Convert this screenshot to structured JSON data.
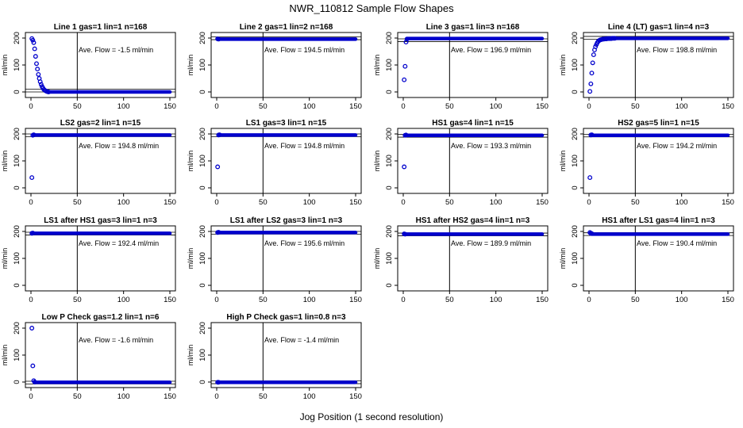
{
  "figure": {
    "title": "NWR_110812  Sample Flow Shapes",
    "xlabel": "Jog Position (1 second resolution)"
  },
  "colors": {
    "points": "#0000cc",
    "frame": "#000000"
  },
  "chart_data": [
    {
      "type": "scatter",
      "title": "Line 1 gas=1 lin=1 n=168",
      "annotation": "Ave. Flow =  -1.5  ml/min",
      "ylabel": "ml/min",
      "xlim": [
        0,
        150
      ],
      "ylim": [
        0,
        200
      ],
      "xticks": [
        0,
        50,
        100,
        150
      ],
      "yticks": [
        0,
        100,
        200
      ],
      "vline": 50,
      "hlines": [
        0,
        10
      ],
      "steady": 0,
      "steady_to": 150,
      "points": [
        [
          1,
          198
        ],
        [
          2,
          192
        ],
        [
          3,
          183
        ],
        [
          4,
          160
        ],
        [
          5,
          132
        ],
        [
          6,
          105
        ],
        [
          7,
          85
        ],
        [
          8,
          65
        ],
        [
          9,
          50
        ],
        [
          10,
          38
        ],
        [
          11,
          28
        ],
        [
          12,
          20
        ],
        [
          13,
          14
        ],
        [
          14,
          9
        ],
        [
          15,
          6
        ],
        [
          16,
          4
        ],
        [
          17,
          2
        ],
        [
          18,
          1
        ],
        [
          19,
          0
        ]
      ]
    },
    {
      "type": "scatter",
      "title": "Line 2 gas=1 lin=2 n=168",
      "annotation": "Ave. Flow =  194.5  ml/min",
      "ylabel": "ml/min",
      "xlim": [
        0,
        150
      ],
      "ylim": [
        0,
        200
      ],
      "xticks": [
        0,
        50,
        100,
        150
      ],
      "yticks": [
        0,
        100,
        200
      ],
      "vline": 50,
      "hlines": [
        194,
        204
      ],
      "steady": 196,
      "steady_to": 150,
      "points": [
        [
          1,
          197
        ],
        [
          2,
          196
        ]
      ]
    },
    {
      "type": "scatter",
      "title": "Line 3 gas=1 lin=3 n=168",
      "annotation": "Ave. Flow =  196.9  ml/min",
      "ylabel": "ml/min",
      "xlim": [
        0,
        150
      ],
      "ylim": [
        0,
        200
      ],
      "xticks": [
        0,
        50,
        100,
        150
      ],
      "yticks": [
        0,
        100,
        200
      ],
      "vline": 50,
      "hlines": [
        187,
        197
      ],
      "steady": 198,
      "steady_to": 150,
      "points": [
        [
          1,
          45
        ],
        [
          2,
          95
        ],
        [
          3,
          185
        ],
        [
          4,
          196
        ]
      ]
    },
    {
      "type": "scatter",
      "title": "Line 4 (LT) gas=1 lin=4 n=3",
      "annotation": "Ave. Flow =  198.8  ml/min",
      "ylabel": "ml/min",
      "xlim": [
        0,
        150
      ],
      "ylim": [
        0,
        200
      ],
      "xticks": [
        0,
        50,
        100,
        150
      ],
      "yticks": [
        0,
        100,
        200
      ],
      "vline": 50,
      "hlines": [
        196,
        206
      ],
      "steady": 199,
      "steady_to": 150,
      "points": [
        [
          1,
          2
        ],
        [
          2,
          30
        ],
        [
          3,
          70
        ],
        [
          4,
          108
        ],
        [
          5,
          138
        ],
        [
          6,
          156
        ],
        [
          7,
          168
        ],
        [
          8,
          176
        ],
        [
          9,
          183
        ],
        [
          10,
          188
        ],
        [
          11,
          191
        ],
        [
          12,
          193
        ],
        [
          13,
          194
        ],
        [
          14,
          195
        ],
        [
          15,
          196
        ],
        [
          16,
          196
        ],
        [
          17,
          197
        ],
        [
          18,
          197
        ],
        [
          19,
          197
        ],
        [
          20,
          198
        ],
        [
          21,
          198
        ],
        [
          22,
          198
        ],
        [
          23,
          198
        ],
        [
          24,
          198
        ],
        [
          25,
          199
        ],
        [
          26,
          199
        ],
        [
          27,
          199
        ],
        [
          28,
          199
        ]
      ]
    },
    {
      "type": "scatter",
      "title": "LS2 gas=2 lin=1 n=15",
      "annotation": "Ave. Flow =  194.8  ml/min",
      "ylabel": "ml/min",
      "xlim": [
        0,
        150
      ],
      "ylim": [
        0,
        200
      ],
      "xticks": [
        0,
        50,
        100,
        150
      ],
      "yticks": [
        0,
        100,
        200
      ],
      "vline": 50,
      "hlines": [
        190,
        200
      ],
      "steady": 196,
      "steady_to": 150,
      "points": [
        [
          1,
          38
        ],
        [
          2,
          195
        ],
        [
          3,
          197
        ]
      ]
    },
    {
      "type": "scatter",
      "title": "LS1 gas=3 lin=1 n=15",
      "annotation": "Ave. Flow =  194.8  ml/min",
      "ylabel": "ml/min",
      "xlim": [
        0,
        150
      ],
      "ylim": [
        0,
        200
      ],
      "xticks": [
        0,
        50,
        100,
        150
      ],
      "yticks": [
        0,
        100,
        200
      ],
      "vline": 50,
      "hlines": [
        190,
        200
      ],
      "steady": 196,
      "steady_to": 150,
      "points": [
        [
          1,
          78
        ],
        [
          2,
          196
        ],
        [
          3,
          197
        ]
      ]
    },
    {
      "type": "scatter",
      "title": "HS1 gas=4 lin=1 n=15",
      "annotation": "Ave. Flow =  193.3  ml/min",
      "ylabel": "ml/min",
      "xlim": [
        0,
        150
      ],
      "ylim": [
        0,
        200
      ],
      "xticks": [
        0,
        50,
        100,
        150
      ],
      "yticks": [
        0,
        100,
        200
      ],
      "vline": 50,
      "hlines": [
        188,
        198
      ],
      "steady": 195,
      "steady_to": 150,
      "points": [
        [
          1,
          78
        ],
        [
          2,
          195
        ],
        [
          3,
          196
        ]
      ]
    },
    {
      "type": "scatter",
      "title": "HS2 gas=5 lin=1 n=15",
      "annotation": "Ave. Flow =  194.2  ml/min",
      "ylabel": "ml/min",
      "xlim": [
        0,
        150
      ],
      "ylim": [
        0,
        200
      ],
      "xticks": [
        0,
        50,
        100,
        150
      ],
      "yticks": [
        0,
        100,
        200
      ],
      "vline": 50,
      "hlines": [
        189,
        199
      ],
      "steady": 195,
      "steady_to": 150,
      "points": [
        [
          1,
          38
        ],
        [
          2,
          196
        ],
        [
          3,
          197
        ]
      ]
    },
    {
      "type": "scatter",
      "title": "LS1 after HS1 gas=3 lin=1 n=3",
      "annotation": "Ave. Flow =  192.4  ml/min",
      "ylabel": "ml/min",
      "xlim": [
        0,
        150
      ],
      "ylim": [
        0,
        200
      ],
      "xticks": [
        0,
        50,
        100,
        150
      ],
      "yticks": [
        0,
        100,
        200
      ],
      "vline": 50,
      "hlines": [
        187,
        197
      ],
      "steady": 193,
      "steady_to": 150,
      "points": [
        [
          1,
          193
        ],
        [
          2,
          194
        ]
      ]
    },
    {
      "type": "scatter",
      "title": "LS1 after LS2 gas=3 lin=1 n=3",
      "annotation": "Ave. Flow =  195.6  ml/min",
      "ylabel": "ml/min",
      "xlim": [
        0,
        150
      ],
      "ylim": [
        0,
        200
      ],
      "xticks": [
        0,
        50,
        100,
        150
      ],
      "yticks": [
        0,
        100,
        200
      ],
      "vline": 50,
      "hlines": [
        190,
        200
      ],
      "steady": 196,
      "steady_to": 150,
      "points": [
        [
          1,
          196
        ],
        [
          2,
          197
        ]
      ]
    },
    {
      "type": "scatter",
      "title": "HS1 after HS2 gas=4 lin=1 n=3",
      "annotation": "Ave. Flow =  189.9  ml/min",
      "ylabel": "ml/min",
      "xlim": [
        0,
        150
      ],
      "ylim": [
        0,
        200
      ],
      "xticks": [
        0,
        50,
        100,
        150
      ],
      "yticks": [
        0,
        100,
        200
      ],
      "vline": 50,
      "hlines": [
        184,
        194
      ],
      "steady": 190,
      "steady_to": 150,
      "points": [
        [
          1,
          191
        ],
        [
          2,
          190
        ]
      ]
    },
    {
      "type": "scatter",
      "title": "HS1 after LS1 gas=4 lin=1 n=3",
      "annotation": "Ave. Flow =  190.4  ml/min",
      "ylabel": "ml/min",
      "xlim": [
        0,
        150
      ],
      "ylim": [
        0,
        200
      ],
      "xticks": [
        0,
        50,
        100,
        150
      ],
      "yticks": [
        0,
        100,
        200
      ],
      "vline": 50,
      "hlines": [
        185,
        195
      ],
      "steady": 190,
      "steady_to": 150,
      "points": [
        [
          1,
          196
        ],
        [
          2,
          193
        ],
        [
          3,
          192
        ]
      ]
    },
    {
      "type": "scatter",
      "title": "Low P Check gas=1.2 lin=1 n=6",
      "annotation": "Ave. Flow =  -1.6  ml/min",
      "ylabel": "ml/min",
      "xlim": [
        0,
        150
      ],
      "ylim": [
        0,
        200
      ],
      "xticks": [
        0,
        50,
        100,
        150
      ],
      "yticks": [
        0,
        100,
        200
      ],
      "vline": 50,
      "hlines": [
        -7,
        3
      ],
      "steady": -1,
      "steady_to": 150,
      "points": [
        [
          1,
          200
        ],
        [
          2,
          60
        ],
        [
          3,
          5
        ],
        [
          4,
          0
        ]
      ]
    },
    {
      "type": "scatter",
      "title": "High P Check gas=1 lin=0.8 n=3",
      "annotation": "Ave. Flow =  -1.4  ml/min",
      "ylabel": "ml/min",
      "xlim": [
        0,
        150
      ],
      "ylim": [
        0,
        200
      ],
      "xticks": [
        0,
        50,
        100,
        150
      ],
      "yticks": [
        0,
        100,
        200
      ],
      "vline": 50,
      "hlines": [
        -6,
        4
      ],
      "steady": -1,
      "steady_to": 150,
      "points": [
        [
          1,
          -1
        ],
        [
          2,
          -1
        ]
      ]
    }
  ]
}
